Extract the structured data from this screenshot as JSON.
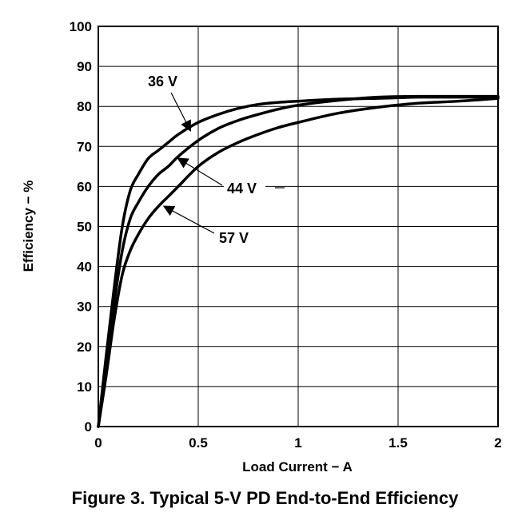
{
  "caption": "Figure 3. Typical 5-V PD End-to-End Efficiency",
  "chart_data": {
    "type": "line",
    "title": "",
    "xlabel": "Load Current − A",
    "ylabel": "Efficiency − %",
    "xlim": [
      0,
      2
    ],
    "ylim": [
      0,
      100
    ],
    "x_ticks": [
      0,
      0.5,
      1,
      1.5,
      2
    ],
    "x_tick_labels": [
      "0",
      "0.5",
      "1",
      "1.5",
      "2"
    ],
    "y_ticks": [
      0,
      10,
      20,
      30,
      40,
      50,
      60,
      70,
      80,
      90,
      100
    ],
    "y_tick_labels": [
      "0",
      "10",
      "20",
      "30",
      "40",
      "50",
      "60",
      "70",
      "80",
      "90",
      "100"
    ],
    "grid": true,
    "series": [
      {
        "name": "36 V",
        "x": [
          0,
          0.04,
          0.08,
          0.12,
          0.16,
          0.2,
          0.25,
          0.3,
          0.35,
          0.4,
          0.5,
          0.6,
          0.7,
          0.8,
          0.9,
          1.0,
          1.2,
          1.4,
          1.6,
          1.8,
          2.0
        ],
        "y": [
          0,
          18,
          35,
          50,
          59,
          63,
          67,
          69,
          71,
          73,
          76,
          78,
          79.5,
          80.5,
          81,
          81.3,
          81.8,
          82,
          82.3,
          82.3,
          82.3
        ]
      },
      {
        "name": "44 V",
        "x": [
          0,
          0.04,
          0.08,
          0.12,
          0.16,
          0.2,
          0.25,
          0.3,
          0.35,
          0.4,
          0.5,
          0.6,
          0.7,
          0.8,
          0.9,
          1.0,
          1.2,
          1.4,
          1.6,
          1.8,
          2.0
        ],
        "y": [
          0,
          15,
          31,
          44,
          52,
          56,
          60,
          63,
          65,
          67.5,
          71.5,
          74.5,
          76.5,
          78,
          79.3,
          80.3,
          81.5,
          82.3,
          82.5,
          82.5,
          82.5
        ]
      },
      {
        "name": "57 V",
        "x": [
          0,
          0.04,
          0.08,
          0.12,
          0.16,
          0.2,
          0.25,
          0.3,
          0.35,
          0.4,
          0.5,
          0.6,
          0.7,
          0.8,
          0.9,
          1.0,
          1.2,
          1.4,
          1.6,
          1.8,
          2.0
        ],
        "y": [
          0,
          13,
          27,
          38,
          44,
          48,
          52,
          55,
          57.5,
          60,
          65,
          68.5,
          71,
          73,
          74.7,
          76,
          78.3,
          79.8,
          80.8,
          81.3,
          82
        ]
      }
    ],
    "annotations": [
      {
        "text": "36 V",
        "series": "36 V",
        "arrow_to": [
          0.46,
          74
        ]
      },
      {
        "text": "44 V",
        "series": "44 V",
        "arrow_to": [
          0.4,
          67
        ]
      },
      {
        "text": "57 V",
        "series": "57 V",
        "arrow_to": [
          0.33,
          55
        ]
      }
    ]
  }
}
